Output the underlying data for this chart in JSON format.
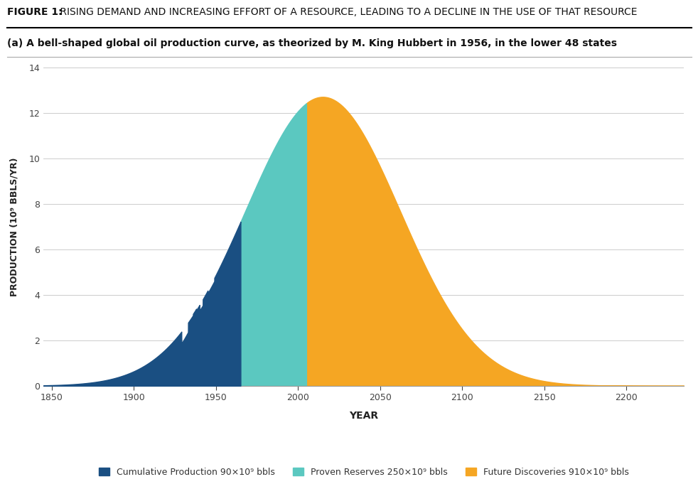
{
  "title_bold": "FIGURE 1:",
  "title_rest": " RISING DEMAND AND INCREASING EFFORT OF A RESOURCE, LEADING TO A DECLINE IN THE USE OF THAT RESOURCE",
  "subtitle": "(a) A bell-shaped global oil production curve, as theorized by M. King Hubbert in 1956, in the lower 48 states",
  "xlabel": "YEAR",
  "ylabel": "PRODUCTION (10⁹ BBLS/YR)",
  "xlim": [
    1845,
    2235
  ],
  "ylim": [
    0,
    14
  ],
  "yticks": [
    0,
    2,
    4,
    6,
    8,
    10,
    12,
    14
  ],
  "xticks": [
    1850,
    1900,
    1950,
    2000,
    2050,
    2100,
    2150,
    2200
  ],
  "peak_year": 2015,
  "peak_value": 12.7,
  "sigma": 47,
  "color_cumulative": "#1a4f82",
  "color_proven": "#5bc8c0",
  "color_future": "#f5a623",
  "cutoff_cumulative": 1965,
  "cutoff_proven": 2005,
  "legend_labels": [
    "Cumulative Production 90×10⁹ bbls",
    "Proven Reserves 250×10⁹ bbls",
    "Future Discoveries 910×10⁹ bbls"
  ],
  "background_color": "#ffffff",
  "grid_color": "#cccccc",
  "title_fontsize": 10,
  "subtitle_fontsize": 10,
  "axis_label_fontsize": 9,
  "tick_fontsize": 9,
  "legend_fontsize": 9
}
